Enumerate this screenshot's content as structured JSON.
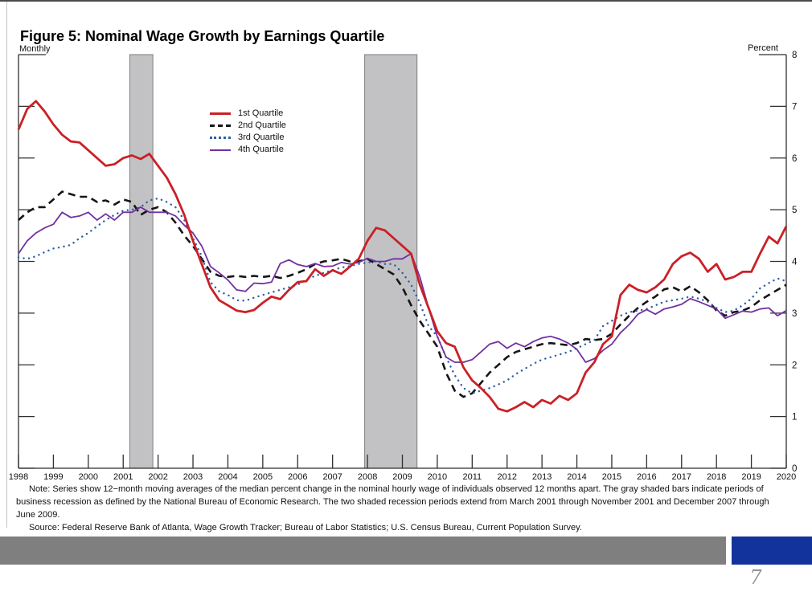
{
  "slide": {
    "title": "Figure 5: Nominal Wage Growth by Earnings Quartile",
    "page_number": "7"
  },
  "note": {
    "text": "Note: Series show 12−month moving averages of the median percent change in the nominal hourly wage of individuals observed 12 months apart. The gray shaded bars indicate periods of business recession as defined by the National Bureau of Economic Research. The two shaded recession periods extend from March 2001 through November 2001 and December 2007 through June 2009.",
    "source": "Source: Federal Reserve Bank of Atlanta, Wage Growth Tracker; Bureau of Labor Statistics; U.S. Census Bureau, Current Population Survey."
  },
  "chart_data": {
    "type": "line",
    "title": "Figure 5: Nominal Wage Growth by Earnings Quartile",
    "left_axis_label": "Monthly",
    "right_axis_label": "Percent",
    "xlim": [
      1998,
      2020
    ],
    "ylim": [
      0,
      8
    ],
    "x_ticks": [
      1998,
      1999,
      2000,
      2001,
      2002,
      2003,
      2004,
      2005,
      2006,
      2007,
      2008,
      2009,
      2010,
      2011,
      2012,
      2013,
      2014,
      2015,
      2016,
      2017,
      2018,
      2019,
      2020
    ],
    "y_ticks": [
      0,
      1,
      2,
      3,
      4,
      5,
      6,
      7,
      8
    ],
    "grid": false,
    "legend_position": "upper-left-inside",
    "recession_bars": [
      {
        "from": 2001.19,
        "to": 2001.85,
        "label": "March 2001 through November 2001"
      },
      {
        "from": 2007.92,
        "to": 2009.42,
        "label": "December 2007 through June 2009"
      }
    ],
    "colors": {
      "q1": "#cb2026",
      "q2": "#151515",
      "q3": "#2d5fa5",
      "q4": "#7131a1",
      "recession_fill": "#c2c2c4",
      "recession_edge": "#7e7e7e",
      "axis": "#2f2f2f",
      "footer_gray": "#7f7f7f",
      "footer_navy": "#13339c"
    },
    "x_start": 1998.0,
    "x_step": 0.25,
    "series": [
      {
        "name": "1st Quartile",
        "color": "#cb2026",
        "style": "solid",
        "width": 2.8,
        "values": [
          6.55,
          6.95,
          7.1,
          6.9,
          6.65,
          6.45,
          6.32,
          6.3,
          6.15,
          6.0,
          5.85,
          5.88,
          6.0,
          6.05,
          5.98,
          6.08,
          5.85,
          5.62,
          5.3,
          4.9,
          4.4,
          3.95,
          3.5,
          3.25,
          3.15,
          3.05,
          3.02,
          3.06,
          3.2,
          3.32,
          3.27,
          3.45,
          3.6,
          3.62,
          3.85,
          3.72,
          3.83,
          3.76,
          3.9,
          4.05,
          4.4,
          4.65,
          4.6,
          4.45,
          4.3,
          4.15,
          3.55,
          3.1,
          2.65,
          2.42,
          2.35,
          1.95,
          1.7,
          1.55,
          1.38,
          1.15,
          1.1,
          1.18,
          1.28,
          1.18,
          1.32,
          1.25,
          1.4,
          1.32,
          1.45,
          1.85,
          2.05,
          2.4,
          2.55,
          3.35,
          3.55,
          3.45,
          3.4,
          3.5,
          3.65,
          3.95,
          4.1,
          4.17,
          4.05,
          3.8,
          3.95,
          3.65,
          3.7,
          3.8,
          3.8,
          4.15,
          4.48,
          4.35,
          4.68
        ]
      },
      {
        "name": "2nd Quartile",
        "color": "#151515",
        "style": "dashed",
        "width": 2.6,
        "values": [
          4.8,
          4.95,
          5.05,
          5.05,
          5.2,
          5.35,
          5.3,
          5.25,
          5.25,
          5.15,
          5.18,
          5.1,
          5.2,
          5.15,
          4.9,
          5.0,
          5.05,
          4.95,
          4.75,
          4.5,
          4.3,
          4.05,
          3.8,
          3.72,
          3.7,
          3.72,
          3.7,
          3.72,
          3.7,
          3.72,
          3.68,
          3.72,
          3.78,
          3.85,
          3.95,
          4.0,
          4.02,
          4.05,
          4.0,
          4.0,
          4.05,
          3.95,
          3.85,
          3.75,
          3.5,
          3.15,
          2.85,
          2.6,
          2.35,
          1.85,
          1.5,
          1.38,
          1.45,
          1.65,
          1.85,
          2.0,
          2.15,
          2.25,
          2.3,
          2.35,
          2.4,
          2.42,
          2.4,
          2.38,
          2.42,
          2.5,
          2.48,
          2.5,
          2.6,
          2.78,
          2.95,
          3.1,
          3.22,
          3.32,
          3.46,
          3.5,
          3.42,
          3.52,
          3.4,
          3.25,
          3.05,
          2.95,
          3.02,
          3.05,
          3.12,
          3.25,
          3.35,
          3.45,
          3.55
        ]
      },
      {
        "name": "3rd Quartile",
        "color": "#2d5fa5",
        "style": "dotted",
        "width": 2.4,
        "values": [
          4.08,
          4.05,
          4.1,
          4.18,
          4.25,
          4.28,
          4.32,
          4.45,
          4.55,
          4.68,
          4.8,
          4.9,
          4.98,
          5.0,
          5.05,
          5.18,
          5.22,
          5.15,
          5.05,
          4.8,
          4.45,
          4.1,
          3.6,
          3.42,
          3.35,
          3.25,
          3.24,
          3.3,
          3.35,
          3.4,
          3.45,
          3.5,
          3.55,
          3.65,
          3.72,
          3.78,
          3.83,
          3.88,
          3.91,
          3.95,
          3.98,
          4.0,
          3.95,
          3.95,
          3.78,
          3.55,
          3.2,
          2.75,
          2.55,
          2.15,
          1.8,
          1.55,
          1.45,
          1.5,
          1.55,
          1.62,
          1.7,
          1.82,
          1.92,
          2.02,
          2.1,
          2.15,
          2.2,
          2.25,
          2.32,
          2.4,
          2.48,
          2.75,
          2.85,
          2.95,
          3.02,
          3.05,
          3.08,
          3.15,
          3.22,
          3.25,
          3.28,
          3.32,
          3.28,
          3.22,
          3.1,
          3.02,
          3.05,
          3.15,
          3.28,
          3.48,
          3.58,
          3.67,
          3.62
        ]
      },
      {
        "name": "4th Quartile",
        "color": "#7131a1",
        "style": "solid",
        "width": 1.8,
        "values": [
          4.15,
          4.4,
          4.55,
          4.65,
          4.72,
          4.95,
          4.85,
          4.88,
          4.95,
          4.8,
          4.92,
          4.8,
          4.95,
          4.95,
          5.05,
          4.95,
          4.95,
          4.95,
          4.88,
          4.7,
          4.55,
          4.3,
          3.9,
          3.78,
          3.64,
          3.45,
          3.42,
          3.58,
          3.57,
          3.6,
          3.96,
          4.03,
          3.94,
          3.9,
          3.96,
          3.9,
          3.91,
          3.98,
          3.95,
          3.98,
          4.06,
          4.0,
          4.0,
          4.05,
          4.05,
          4.15,
          3.7,
          3.1,
          2.55,
          2.15,
          2.05,
          2.05,
          2.1,
          2.25,
          2.4,
          2.45,
          2.32,
          2.42,
          2.35,
          2.45,
          2.52,
          2.55,
          2.5,
          2.42,
          2.3,
          2.05,
          2.12,
          2.28,
          2.4,
          2.62,
          2.78,
          2.98,
          3.07,
          2.98,
          3.08,
          3.12,
          3.17,
          3.28,
          3.22,
          3.15,
          3.08,
          2.9,
          2.97,
          3.04,
          3.02,
          3.08,
          3.1,
          2.95,
          3.05
        ]
      }
    ]
  }
}
